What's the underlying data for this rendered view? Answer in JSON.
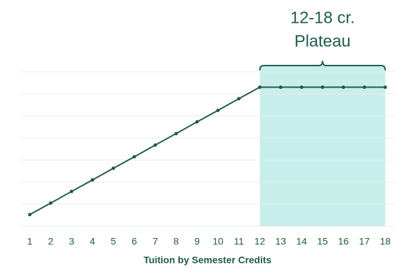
{
  "chart_data": {
    "type": "line",
    "x_label": "Tuition by Semester Credits",
    "x": [
      1,
      2,
      3,
      4,
      5,
      6,
      7,
      8,
      9,
      10,
      11,
      12,
      13,
      14,
      15,
      16,
      17,
      18
    ],
    "series": [
      {
        "color": "#1f5a4c",
        "values": [
          0.53,
          1.05,
          1.58,
          2.1,
          2.63,
          3.15,
          3.68,
          4.2,
          4.73,
          5.25,
          5.78,
          6.3,
          6.3,
          6.3,
          6.3,
          6.3,
          6.3,
          6.3
        ]
      }
    ],
    "xlim": [
      0.57,
      18.43
    ],
    "xticks": [
      1,
      2,
      3,
      4,
      5,
      6,
      7,
      8,
      9,
      10,
      11,
      12,
      13,
      14,
      15,
      16,
      17,
      18
    ],
    "ylim": [
      0,
      7
    ],
    "yticks": [
      0,
      1,
      2,
      3,
      4,
      5,
      6,
      7
    ],
    "grid": true,
    "annotation": {
      "lines": [
        "12-18 cr.",
        "Plateau"
      ],
      "x_range": [
        12,
        18
      ],
      "color": "#c8eeec"
    }
  }
}
